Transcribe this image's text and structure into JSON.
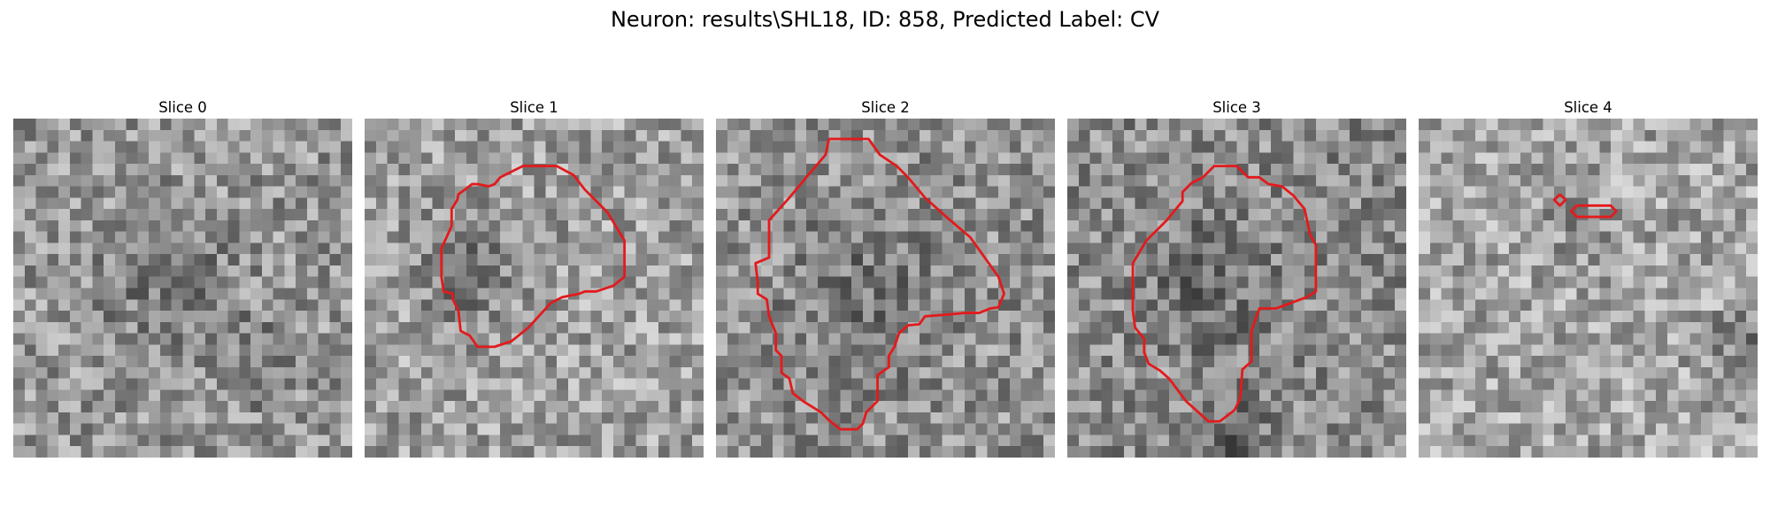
{
  "figure": {
    "suptitle": "Neuron: results\\SHL18, ID: 858, Predicted Label: CV"
  },
  "slices": [
    {
      "title": "Slice 0"
    },
    {
      "title": "Slice 1"
    },
    {
      "title": "Slice 2"
    },
    {
      "title": "Slice 3"
    },
    {
      "title": "Slice 4"
    }
  ],
  "colors": {
    "contour": "#e31a1c",
    "background": "#ffffff"
  }
}
